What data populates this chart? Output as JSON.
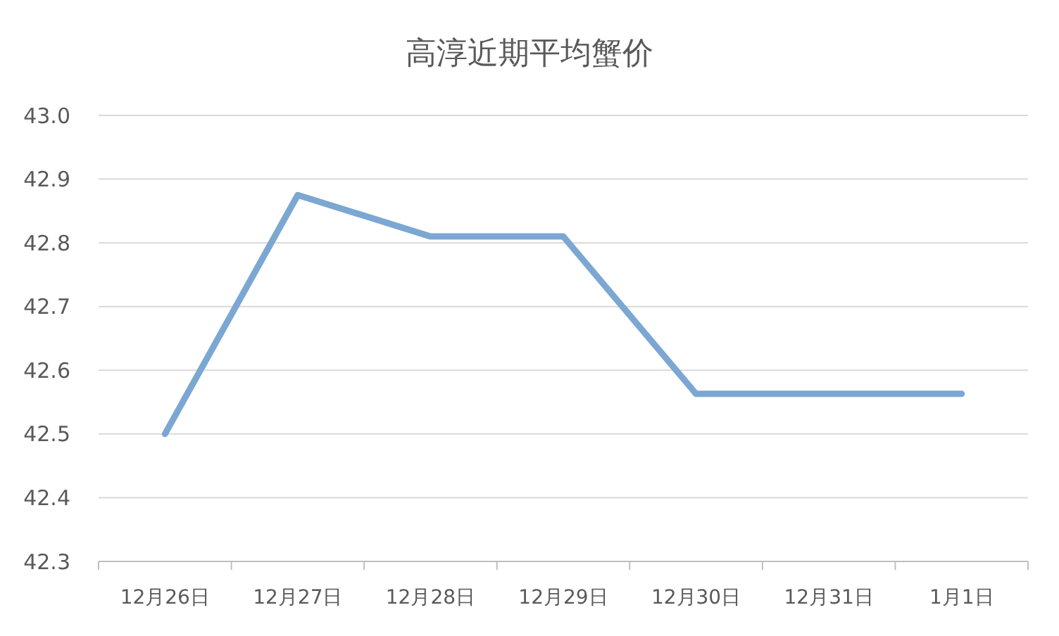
{
  "chart_data": {
    "type": "line",
    "title": "高淳近期平均蟹价",
    "categories": [
      "12月26日",
      "12月27日",
      "12月28日",
      "12月29日",
      "12月30日",
      "12月31日",
      "1月1日"
    ],
    "series": [
      {
        "color": "#7ba7d2",
        "values": [
          42.5,
          42.875,
          42.81,
          42.81,
          42.563,
          42.563,
          42.563
        ]
      }
    ],
    "ylim": [
      42.3,
      43.0
    ],
    "yticks": [
      42.3,
      42.4,
      42.5,
      42.6,
      42.7,
      42.8,
      42.9,
      {
        "value": 43.0,
        "label": "43.0"
      }
    ],
    "grid": "y",
    "marker": "none",
    "line_style": "solid"
  }
}
